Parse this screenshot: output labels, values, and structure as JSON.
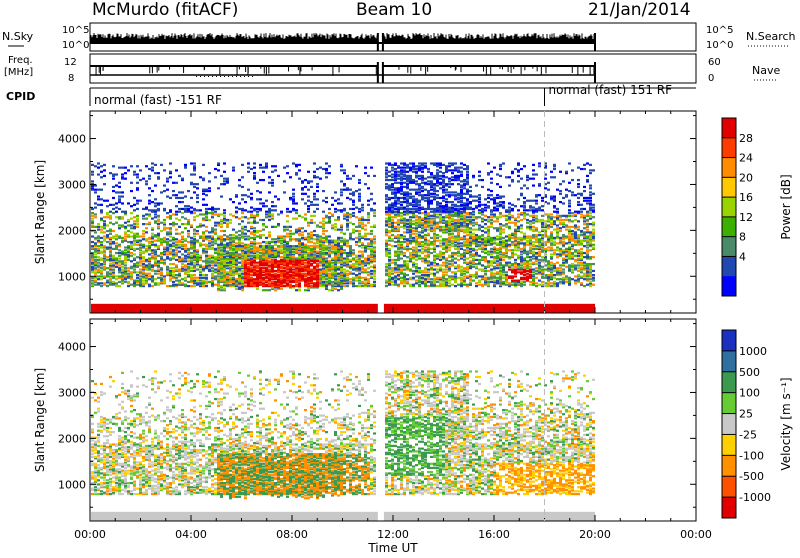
{
  "header": {
    "station": "McMurdo (fitACF)",
    "beam": "Beam 10",
    "date": "21/Jan/2014"
  },
  "strips": {
    "nsky_label": "N.Sky",
    "nsearch_label": "N.Search",
    "nsky_ticks": [
      "10^5",
      "10^0"
    ],
    "nsky_right_ticks": [
      "10^5",
      "10^0"
    ],
    "freq_label": "Freq.",
    "freq_unit": "[MHz]",
    "freq_ticks": [
      "12",
      "8"
    ],
    "nave_label": "Nave",
    "nave_ticks": [
      "60",
      "0"
    ],
    "cpid_label": "CPID",
    "cpid_segments": [
      {
        "label": "normal (fast) -151 RF",
        "start_hour": 0
      },
      {
        "label": "normal (fast) 151 RF",
        "start_hour": 18
      }
    ]
  },
  "chart_data": [
    {
      "type": "heatmap",
      "panel": "power",
      "ylabel": "Slant Range [km]",
      "xlabel": "",
      "xlim_hours": [
        0,
        24
      ],
      "ylim_km": [
        200,
        4600
      ],
      "y_ticks": [
        1000,
        2000,
        3000,
        4000
      ],
      "data_gap_hours": [
        11.4,
        11.6
      ],
      "data_end_hour": 20,
      "colorbar": {
        "label": "Power [dB]",
        "ticks": [
          "28",
          "24",
          "20",
          "16",
          "12",
          "8",
          "4"
        ],
        "colors": [
          "#e00000",
          "#ff3c00",
          "#ff8c00",
          "#ffc800",
          "#9ad400",
          "#3cb000",
          "#4a8a6a",
          "#2048b0",
          "#0000ff"
        ]
      }
    },
    {
      "type": "heatmap",
      "panel": "velocity",
      "ylabel": "Slant Range [km]",
      "xlabel": "Time UT",
      "xlim_hours": [
        0,
        24
      ],
      "ylim_km": [
        200,
        4600
      ],
      "y_ticks": [
        1000,
        2000,
        3000,
        4000
      ],
      "x_ticks": [
        "00:00",
        "04:00",
        "08:00",
        "12:00",
        "16:00",
        "20:00",
        "00:00"
      ],
      "data_gap_hours": [
        11.4,
        11.6
      ],
      "data_end_hour": 20,
      "colorbar": {
        "label": "Velocity [m s⁻¹]",
        "ticks": [
          "1000",
          "500",
          "100",
          "25",
          "-25",
          "-100",
          "-500",
          "-1000"
        ],
        "colors": [
          "#1a30c0",
          "#3070a0",
          "#3c9a50",
          "#66cc33",
          "#c8c8c8",
          "#ffd000",
          "#ff9000",
          "#ff5000",
          "#e00000"
        ]
      }
    }
  ]
}
